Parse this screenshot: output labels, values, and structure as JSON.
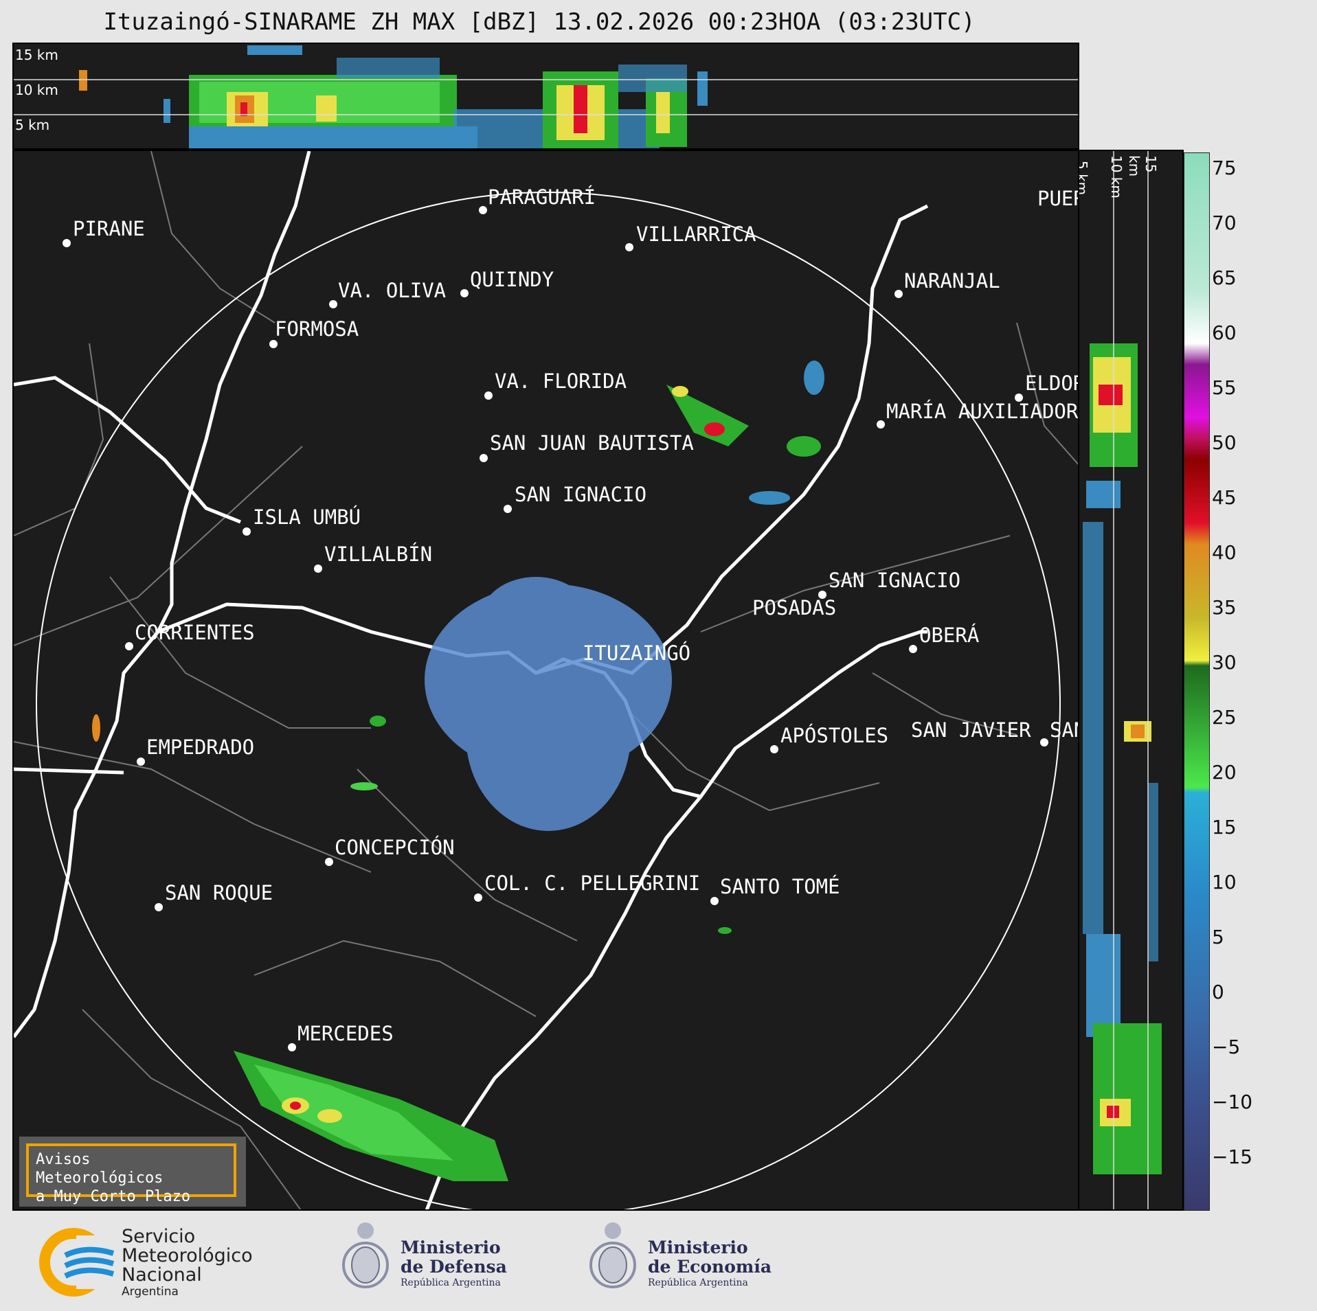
{
  "title": "Ituzaingó-SINARAME ZH MAX [dBZ] 13.02.2026 00:23HOA (03:23UTC)",
  "top_panel": {
    "height_labels": [
      "15 km",
      "10 km",
      "5 km"
    ]
  },
  "side_panel": {
    "height_labels": [
      "5 km",
      "10 km",
      "15 km"
    ]
  },
  "colorbar": {
    "ticks": [
      "75",
      "70",
      "65",
      "60",
      "55",
      "50",
      "45",
      "40",
      "35",
      "30",
      "25",
      "20",
      "15",
      "10",
      "5",
      "0",
      "−5",
      "−10",
      "−15"
    ],
    "range": [
      -20,
      76
    ],
    "units": "dBZ"
  },
  "map": {
    "radar_site": "ITUZAINGÓ",
    "cities": [
      {
        "name": "PARAGUARÍ"
      },
      {
        "name": "VILLARRICA"
      },
      {
        "name": "PIRANE"
      },
      {
        "name": "QUIINDY"
      },
      {
        "name": "VA. OLIVA"
      },
      {
        "name": "NARANJAL"
      },
      {
        "name": "FORMOSA"
      },
      {
        "name": "VA. FLORIDA"
      },
      {
        "name": "ELDORADO"
      },
      {
        "name": "MARÍA AUXILIADORA"
      },
      {
        "name": "SAN JUAN BAUTISTA"
      },
      {
        "name": "SAN IGNACIO"
      },
      {
        "name": "ISLA UMBÚ"
      },
      {
        "name": "VILLALBÍN"
      },
      {
        "name": "SAN IGNACIO"
      },
      {
        "name": "POSADAS"
      },
      {
        "name": "CORRIENTES"
      },
      {
        "name": "OBERÁ"
      },
      {
        "name": "ITUZAINGÓ"
      },
      {
        "name": "APÓSTOLES"
      },
      {
        "name": "SAN JAVIER"
      },
      {
        "name": "SAN"
      },
      {
        "name": "EMPEDRADO"
      },
      {
        "name": "CONCEPCIÓN"
      },
      {
        "name": "SAN ROQUE"
      },
      {
        "name": "COL. C. PELLEGRINI"
      },
      {
        "name": "SANTO TOMÉ"
      },
      {
        "name": "MERCEDES"
      },
      {
        "name": "PUERTO"
      }
    ]
  },
  "warning_box": {
    "line1": "Avisos Meteorológicos",
    "line2": "a Muy Corto Plazo"
  },
  "logos": {
    "smn": {
      "l1": "Servicio",
      "l2": "Meteorológico",
      "l3": "Nacional",
      "l4": "Argentina"
    },
    "defensa": {
      "l1": "Ministerio",
      "l2": "de Defensa",
      "l3": "República Argentina"
    },
    "economia": {
      "l1": "Ministerio",
      "l2": "de Economía",
      "l3": "República Argentina"
    }
  },
  "colors": {
    "map_bg": "#1c1c1c",
    "accent_orange": "#f0a400",
    "smn_blue": "#1e8fd6",
    "smn_yellow": "#f5a800"
  }
}
